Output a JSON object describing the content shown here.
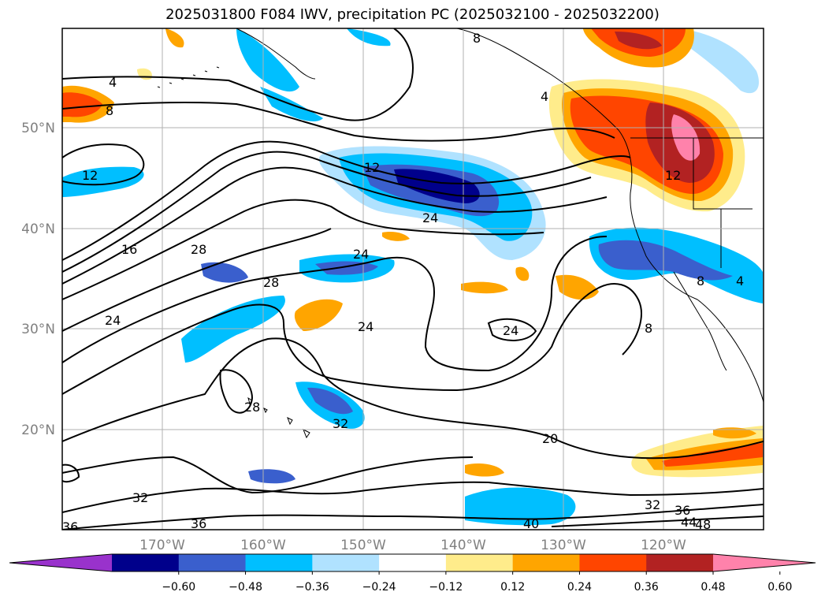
{
  "title": "2025031800 F084 IWV, precipitation PC (2025032100 - 2025032200)",
  "map": {
    "lon_labels": [
      "170°W",
      "160°W",
      "150°W",
      "140°W",
      "130°W",
      "120°W"
    ],
    "lat_labels": [
      "50°N",
      "40°N",
      "30°N",
      "20°N"
    ],
    "contour_labels": [
      "4",
      "8",
      "12",
      "16",
      "28",
      "24",
      "28",
      "24",
      "12",
      "24",
      "24",
      "8",
      "4",
      "12",
      "8",
      "4",
      "24",
      "8",
      "20",
      "28",
      "32",
      "32",
      "32",
      "36",
      "36",
      "40",
      "44",
      "48",
      "36"
    ]
  },
  "colorbar": {
    "ticks": [
      "−0.60",
      "−0.48",
      "−0.36",
      "−0.24",
      "−0.12",
      "0.12",
      "0.24",
      "0.36",
      "0.48",
      "0.60"
    ],
    "colors": [
      "#9932cc",
      "#00008b",
      "#3a5fcd",
      "#00bfff",
      "#b0e2ff",
      "#ffffff",
      "#ffec8b",
      "#ffa500",
      "#ff4500",
      "#b22222",
      "#ff82ab"
    ]
  }
}
